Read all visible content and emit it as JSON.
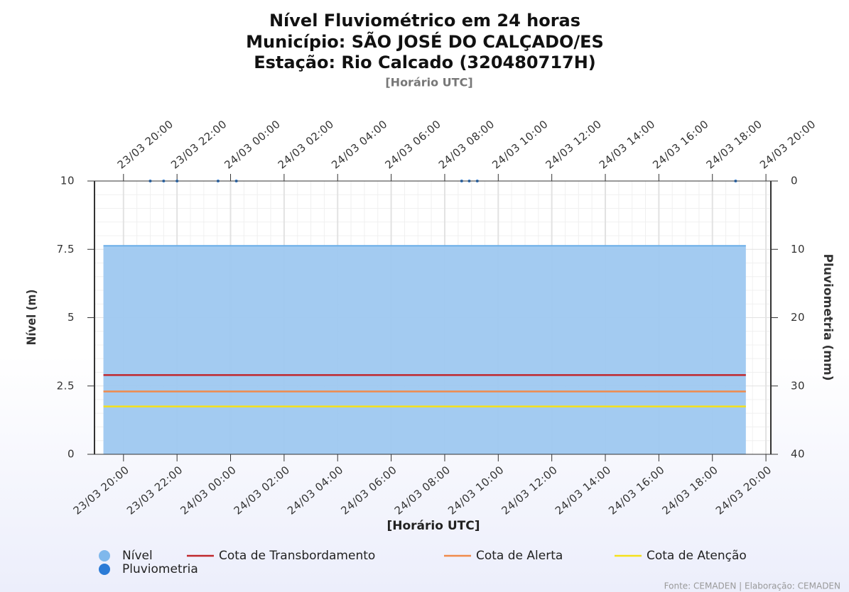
{
  "chart_data": {
    "type": "line",
    "title": [
      "Nível Fluviométrico em 24 horas",
      "Município: SÃO JOSÉ DO CALÇADO/ES",
      "Estação: Rio Calcado (320480717H)"
    ],
    "subtitle": "[Horário UTC]",
    "xlabel": "[Horário UTC]",
    "ylabel": "Nível (m)",
    "y2label": "Pluviometria (mm)",
    "xlim": [
      "23/03 18:55",
      "24/03 20:11"
    ],
    "xticks": [
      "23/03 20:00",
      "23/03 22:00",
      "24/03 00:00",
      "24/03 02:00",
      "24/03 04:00",
      "24/03 06:00",
      "24/03 08:00",
      "24/03 10:00",
      "24/03 12:00",
      "24/03 14:00",
      "24/03 16:00",
      "24/03 18:00",
      "24/03 20:00"
    ],
    "ylim": [
      0,
      10
    ],
    "yticks": [
      0,
      2.5,
      5,
      7.5,
      10
    ],
    "y2lim": [
      40,
      0
    ],
    "y2ticks": [
      0,
      10,
      20,
      30,
      40
    ],
    "grid": true,
    "series": [
      {
        "name": "Nível",
        "type": "area",
        "color": "#9ec8f0",
        "x": [
          "23/03 19:15",
          "24/03 19:15"
        ],
        "values": [
          7.63,
          7.63
        ]
      },
      {
        "name": "Pluviometria",
        "type": "scatter",
        "axis": "y2",
        "color": "#2b7bd6",
        "x": [
          "23/03 21:00",
          "23/03 21:30",
          "23/03 22:00",
          "23/03 23:32",
          "24/03 00:13",
          "24/03 08:38",
          "24/03 08:55",
          "24/03 09:13",
          "24/03 18:52"
        ],
        "values": [
          0,
          0,
          0,
          0,
          0,
          0,
          0,
          0,
          0
        ]
      },
      {
        "name": "Cota de Transbordamento",
        "type": "line",
        "color": "#c0282d",
        "x": [
          "23/03 19:15",
          "24/03 19:15"
        ],
        "values": [
          2.9,
          2.9
        ]
      },
      {
        "name": "Cota de Alerta",
        "type": "line",
        "color": "#f08a4b",
        "x": [
          "23/03 19:15",
          "24/03 19:15"
        ],
        "values": [
          2.3,
          2.3
        ]
      },
      {
        "name": "Cota de Atenção",
        "type": "line",
        "color": "#f5e11a",
        "x": [
          "23/03 19:15",
          "24/03 19:15"
        ],
        "values": [
          1.75,
          1.75
        ]
      }
    ],
    "footer": "Fonte: CEMADEN | Elaboração: CEMADEN"
  }
}
